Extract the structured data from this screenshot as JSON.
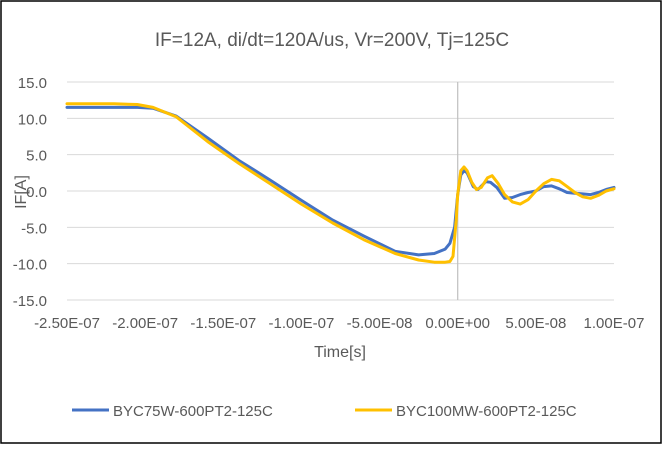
{
  "chart_data": {
    "type": "line",
    "title": "IF=12A, di/dt=120A/us, Vr=200V, Tj=125C",
    "xlabel": "Time[s]",
    "ylabel": "IF[A]",
    "xlim": [
      -2.5e-07,
      1e-07
    ],
    "ylim": [
      -15,
      15
    ],
    "x_ticks": [
      -2.5e-07,
      -2e-07,
      -1.5e-07,
      -1e-07,
      -5e-08,
      0,
      5e-08,
      1e-07
    ],
    "x_tick_labels": [
      "-2.50E-07",
      "-2.00E-07",
      "-1.50E-07",
      "-1.00E-07",
      "-5.00E-08",
      "0.00E+00",
      "5.00E-08",
      "1.00E-07"
    ],
    "y_ticks": [
      15,
      10,
      5,
      0,
      -5,
      -10,
      -15
    ],
    "y_tick_labels": [
      "15.0",
      "10.0",
      "5.0",
      "0.0",
      "-5.0",
      "-10.0",
      "-15.0"
    ],
    "grid": "horizontal",
    "legend_position": "bottom",
    "series": [
      {
        "name": "BYC75W-600PT2-125C",
        "color": "#4472C4",
        "x": [
          -2.5e-07,
          -2.2e-07,
          -2.05e-07,
          -1.95e-07,
          -1.8e-07,
          -1.6e-07,
          -1.4e-07,
          -1.2e-07,
          -1e-07,
          -8e-08,
          -6e-08,
          -4e-08,
          -2.5e-08,
          -1.5e-08,
          -8e-09,
          -5e-09,
          -2e-09,
          0,
          2e-09,
          4e-09,
          6e-09,
          1e-08,
          1.3e-08,
          1.8e-08,
          2.1e-08,
          2.5e-08,
          3e-08,
          3.5e-08,
          4e-08,
          4.5e-08,
          5e-08,
          5.5e-08,
          6e-08,
          6.5e-08,
          7e-08,
          7.5e-08,
          8e-08,
          8.5e-08,
          9e-08,
          9.5e-08,
          1e-07
        ],
        "values": [
          11.5,
          11.5,
          11.5,
          11.4,
          10.3,
          7.3,
          4.2,
          1.5,
          -1.3,
          -4.0,
          -6.2,
          -8.3,
          -8.8,
          -8.6,
          -8.0,
          -7.2,
          -5.0,
          -0.5,
          2.2,
          2.8,
          2.5,
          0.6,
          0.2,
          1.3,
          1.2,
          0.5,
          -1.0,
          -0.9,
          -0.5,
          -0.2,
          0.0,
          0.6,
          0.7,
          0.3,
          -0.2,
          -0.3,
          -0.4,
          -0.5,
          -0.2,
          0.2,
          0.5
        ]
      },
      {
        "name": "BYC100MW-600PT2-125C",
        "color": "#FFC000",
        "x": [
          -2.5e-07,
          -2.2e-07,
          -2.05e-07,
          -1.95e-07,
          -1.8e-07,
          -1.6e-07,
          -1.4e-07,
          -1.2e-07,
          -1e-07,
          -8e-08,
          -6e-08,
          -4e-08,
          -2.5e-08,
          -1.5e-08,
          -8e-09,
          -5e-09,
          -3e-09,
          -1e-09,
          0,
          2e-09,
          4e-09,
          6e-09,
          9e-09,
          1.2e-08,
          1.5e-08,
          1.9e-08,
          2.2e-08,
          2.6e-08,
          3e-08,
          3.5e-08,
          4e-08,
          4.5e-08,
          5e-08,
          5.5e-08,
          6e-08,
          6.5e-08,
          7e-08,
          7.5e-08,
          8e-08,
          8.5e-08,
          9e-08,
          9.5e-08,
          1e-07
        ],
        "values": [
          12.0,
          12.0,
          11.9,
          11.5,
          10.2,
          6.8,
          3.8,
          1.0,
          -1.8,
          -4.4,
          -6.7,
          -8.6,
          -9.5,
          -9.8,
          -9.8,
          -9.7,
          -9.0,
          -4.0,
          -0.5,
          2.8,
          3.3,
          2.8,
          1.2,
          0.2,
          0.5,
          1.8,
          2.1,
          1.0,
          -0.5,
          -1.5,
          -1.8,
          -1.2,
          0.0,
          1.0,
          1.6,
          1.4,
          0.6,
          -0.2,
          -0.8,
          -1.0,
          -0.6,
          0.0,
          0.3
        ]
      }
    ]
  }
}
